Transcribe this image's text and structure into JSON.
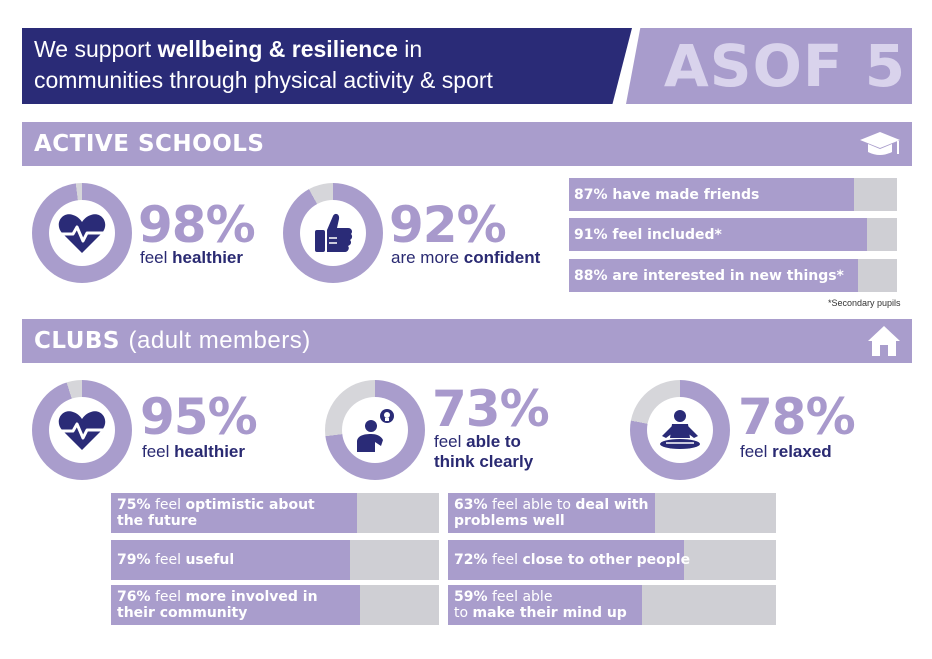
{
  "header": {
    "title_part1": "We support ",
    "title_bold": "wellbeing & resilience",
    "title_part2": " in",
    "title_line2": "communities through physical activity & sport",
    "badge": "ASOF 5"
  },
  "active_schools": {
    "title": "ACTIVE SCHOOLS",
    "icon": "graduation-cap-icon",
    "stats": [
      {
        "value": "98%",
        "pct": 98,
        "cap_normal": "feel ",
        "cap_bold": "healthier",
        "icon": "heart-pulse-icon"
      },
      {
        "value": "92%",
        "pct": 92,
        "cap_normal": "are more ",
        "cap_bold": "confident",
        "icon": "thumbs-up-icon"
      }
    ],
    "bars": [
      {
        "label": "87% have made friends",
        "pct": 87
      },
      {
        "label": "91% feel included*",
        "pct": 91
      },
      {
        "label": "88% are interested in new things*",
        "pct": 88
      }
    ],
    "footnote": "*Secondary pupils"
  },
  "clubs": {
    "title": "CLUBS",
    "subtitle": "(adult members)",
    "icon": "house-icon",
    "stats": [
      {
        "value": "95%",
        "pct": 95,
        "cap_normal": "feel ",
        "cap_bold": "healthier",
        "icon": "heart-pulse-icon"
      },
      {
        "value": "73%",
        "pct": 73,
        "cap_line1_normal": "feel ",
        "cap_line1_bold": "able to",
        "cap_line2_bold": "think clearly",
        "icon": "thinking-person-icon"
      },
      {
        "value": "78%",
        "pct": 78,
        "cap_normal": "feel ",
        "cap_bold": "relaxed",
        "icon": "meditation-icon"
      }
    ],
    "bars_left": [
      {
        "pct_text": "75%",
        "normal": " feel ",
        "bold": "optimistic about",
        "line2": "the future",
        "pct": 75
      },
      {
        "pct_text": "79%",
        "normal": " feel ",
        "bold": "useful",
        "line2": "",
        "pct": 79
      },
      {
        "pct_text": "76%",
        "normal": " feel ",
        "bold": "more involved in",
        "line2": "their community",
        "pct": 76
      }
    ],
    "bars_right": [
      {
        "pct_text": "63%",
        "normal": " feel able to ",
        "bold": "deal with",
        "line2": "problems well",
        "pct": 63
      },
      {
        "pct_text": "72%",
        "normal": " feel ",
        "bold": "close to other people",
        "line2": "",
        "pct": 72
      },
      {
        "pct_text": "59%",
        "normal": " feel able",
        "bold": "",
        "line2_normal": "to ",
        "line2": "make their mind up",
        "pct": 59
      }
    ]
  },
  "colors": {
    "navy": "#2a2b77",
    "lavender": "#a99dcc",
    "grey": "#cfcfd4"
  }
}
